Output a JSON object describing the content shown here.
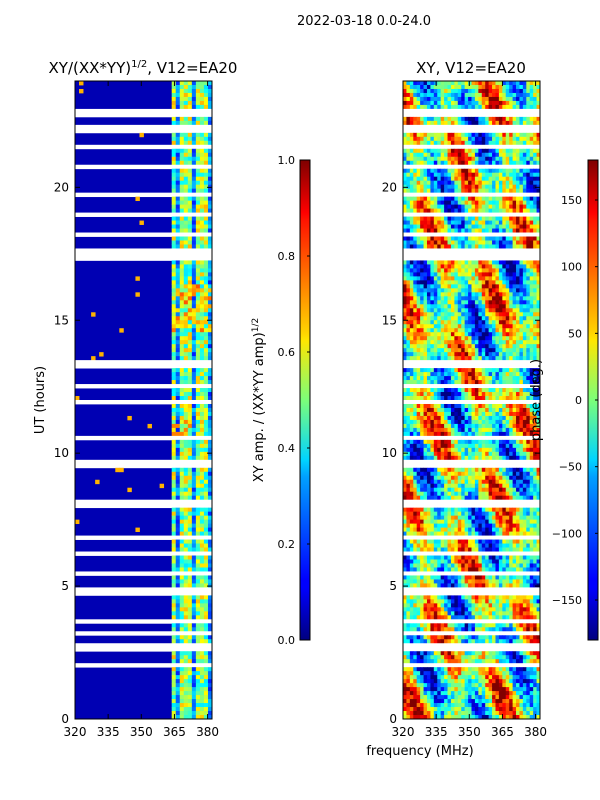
{
  "suptitle": "2022-03-18 0.0-24.0",
  "chart_data": [
    {
      "type": "heatmap",
      "id": "left",
      "title": "XY/(XX*YY)^1/2, V12=EA20",
      "title_main": "XY/(XX*YY)",
      "title_sup": "1/2",
      "title_rest": ", V12=EA20",
      "xlabel": "",
      "ylabel": "UT (hours)",
      "xlim": [
        320,
        382
      ],
      "ylim": [
        0,
        24
      ],
      "x_ticks": [
        320,
        335,
        350,
        365,
        380
      ],
      "x_tick_labels": [
        "320",
        "335",
        "350",
        "365",
        "380"
      ],
      "y_ticks": [
        0,
        5,
        10,
        15,
        20
      ],
      "y_tick_labels": [
        "0",
        "5",
        "10",
        "15",
        "20"
      ],
      "colorbar": {
        "label": "XY amp. / (XX*YY amp)^1/2",
        "label_main": "XY amp. / (XX*YY amp)",
        "label_sup": "1/2",
        "range": [
          0.0,
          1.0
        ],
        "ticks": [
          0.0,
          0.2,
          0.4,
          0.6,
          0.8,
          1.0
        ],
        "tick_labels": [
          "0.0",
          "0.2",
          "0.4",
          "0.6",
          "0.8",
          "1.0"
        ]
      },
      "band_high_mhz": [
        363,
        382
      ],
      "typical_low_value": 0.02,
      "typical_band_value": 0.5
    },
    {
      "type": "heatmap",
      "id": "right",
      "title": "XY, V12=EA20",
      "xlabel": "frequency (MHz)",
      "ylabel": "",
      "xlim": [
        320,
        382
      ],
      "ylim": [
        0,
        24
      ],
      "x_ticks": [
        320,
        335,
        350,
        365,
        380
      ],
      "x_tick_labels": [
        "320",
        "335",
        "350",
        "365",
        "380"
      ],
      "y_ticks": [
        0,
        5,
        10,
        15,
        20
      ],
      "y_tick_labels": [
        "0",
        "5",
        "10",
        "15",
        "20"
      ],
      "colorbar": {
        "label": "phase (deg.)",
        "range": [
          -180,
          180
        ],
        "ticks": [
          -150,
          -100,
          -50,
          0,
          50,
          100,
          150
        ],
        "tick_labels": [
          "−150",
          "−100",
          "−50",
          "0",
          "50",
          "100",
          "150"
        ]
      }
    }
  ],
  "flag_gaps_hours": [
    [
      22.6,
      22.9
    ],
    [
      22.0,
      22.3
    ],
    [
      21.4,
      21.55
    ],
    [
      20.7,
      20.85
    ],
    [
      19.7,
      19.85
    ],
    [
      18.9,
      19.05
    ],
    [
      18.2,
      18.3
    ],
    [
      17.2,
      17.7
    ],
    [
      13.2,
      13.5
    ],
    [
      12.4,
      12.55
    ],
    [
      11.9,
      12.0
    ],
    [
      10.5,
      10.65
    ],
    [
      9.5,
      9.7
    ],
    [
      7.9,
      8.3
    ],
    [
      7.3,
      7.4
    ],
    [
      6.8,
      6.95
    ],
    [
      6.2,
      6.3
    ],
    [
      5.4,
      5.5
    ],
    [
      4.6,
      4.9
    ],
    [
      3.6,
      3.7
    ],
    [
      3.2,
      3.3
    ],
    [
      2.6,
      2.9
    ],
    [
      2.0,
      2.05
    ],
    [
      1.6,
      1.7
    ]
  ],
  "colors": {
    "axis": "#000000",
    "gap": "#ffffff"
  }
}
